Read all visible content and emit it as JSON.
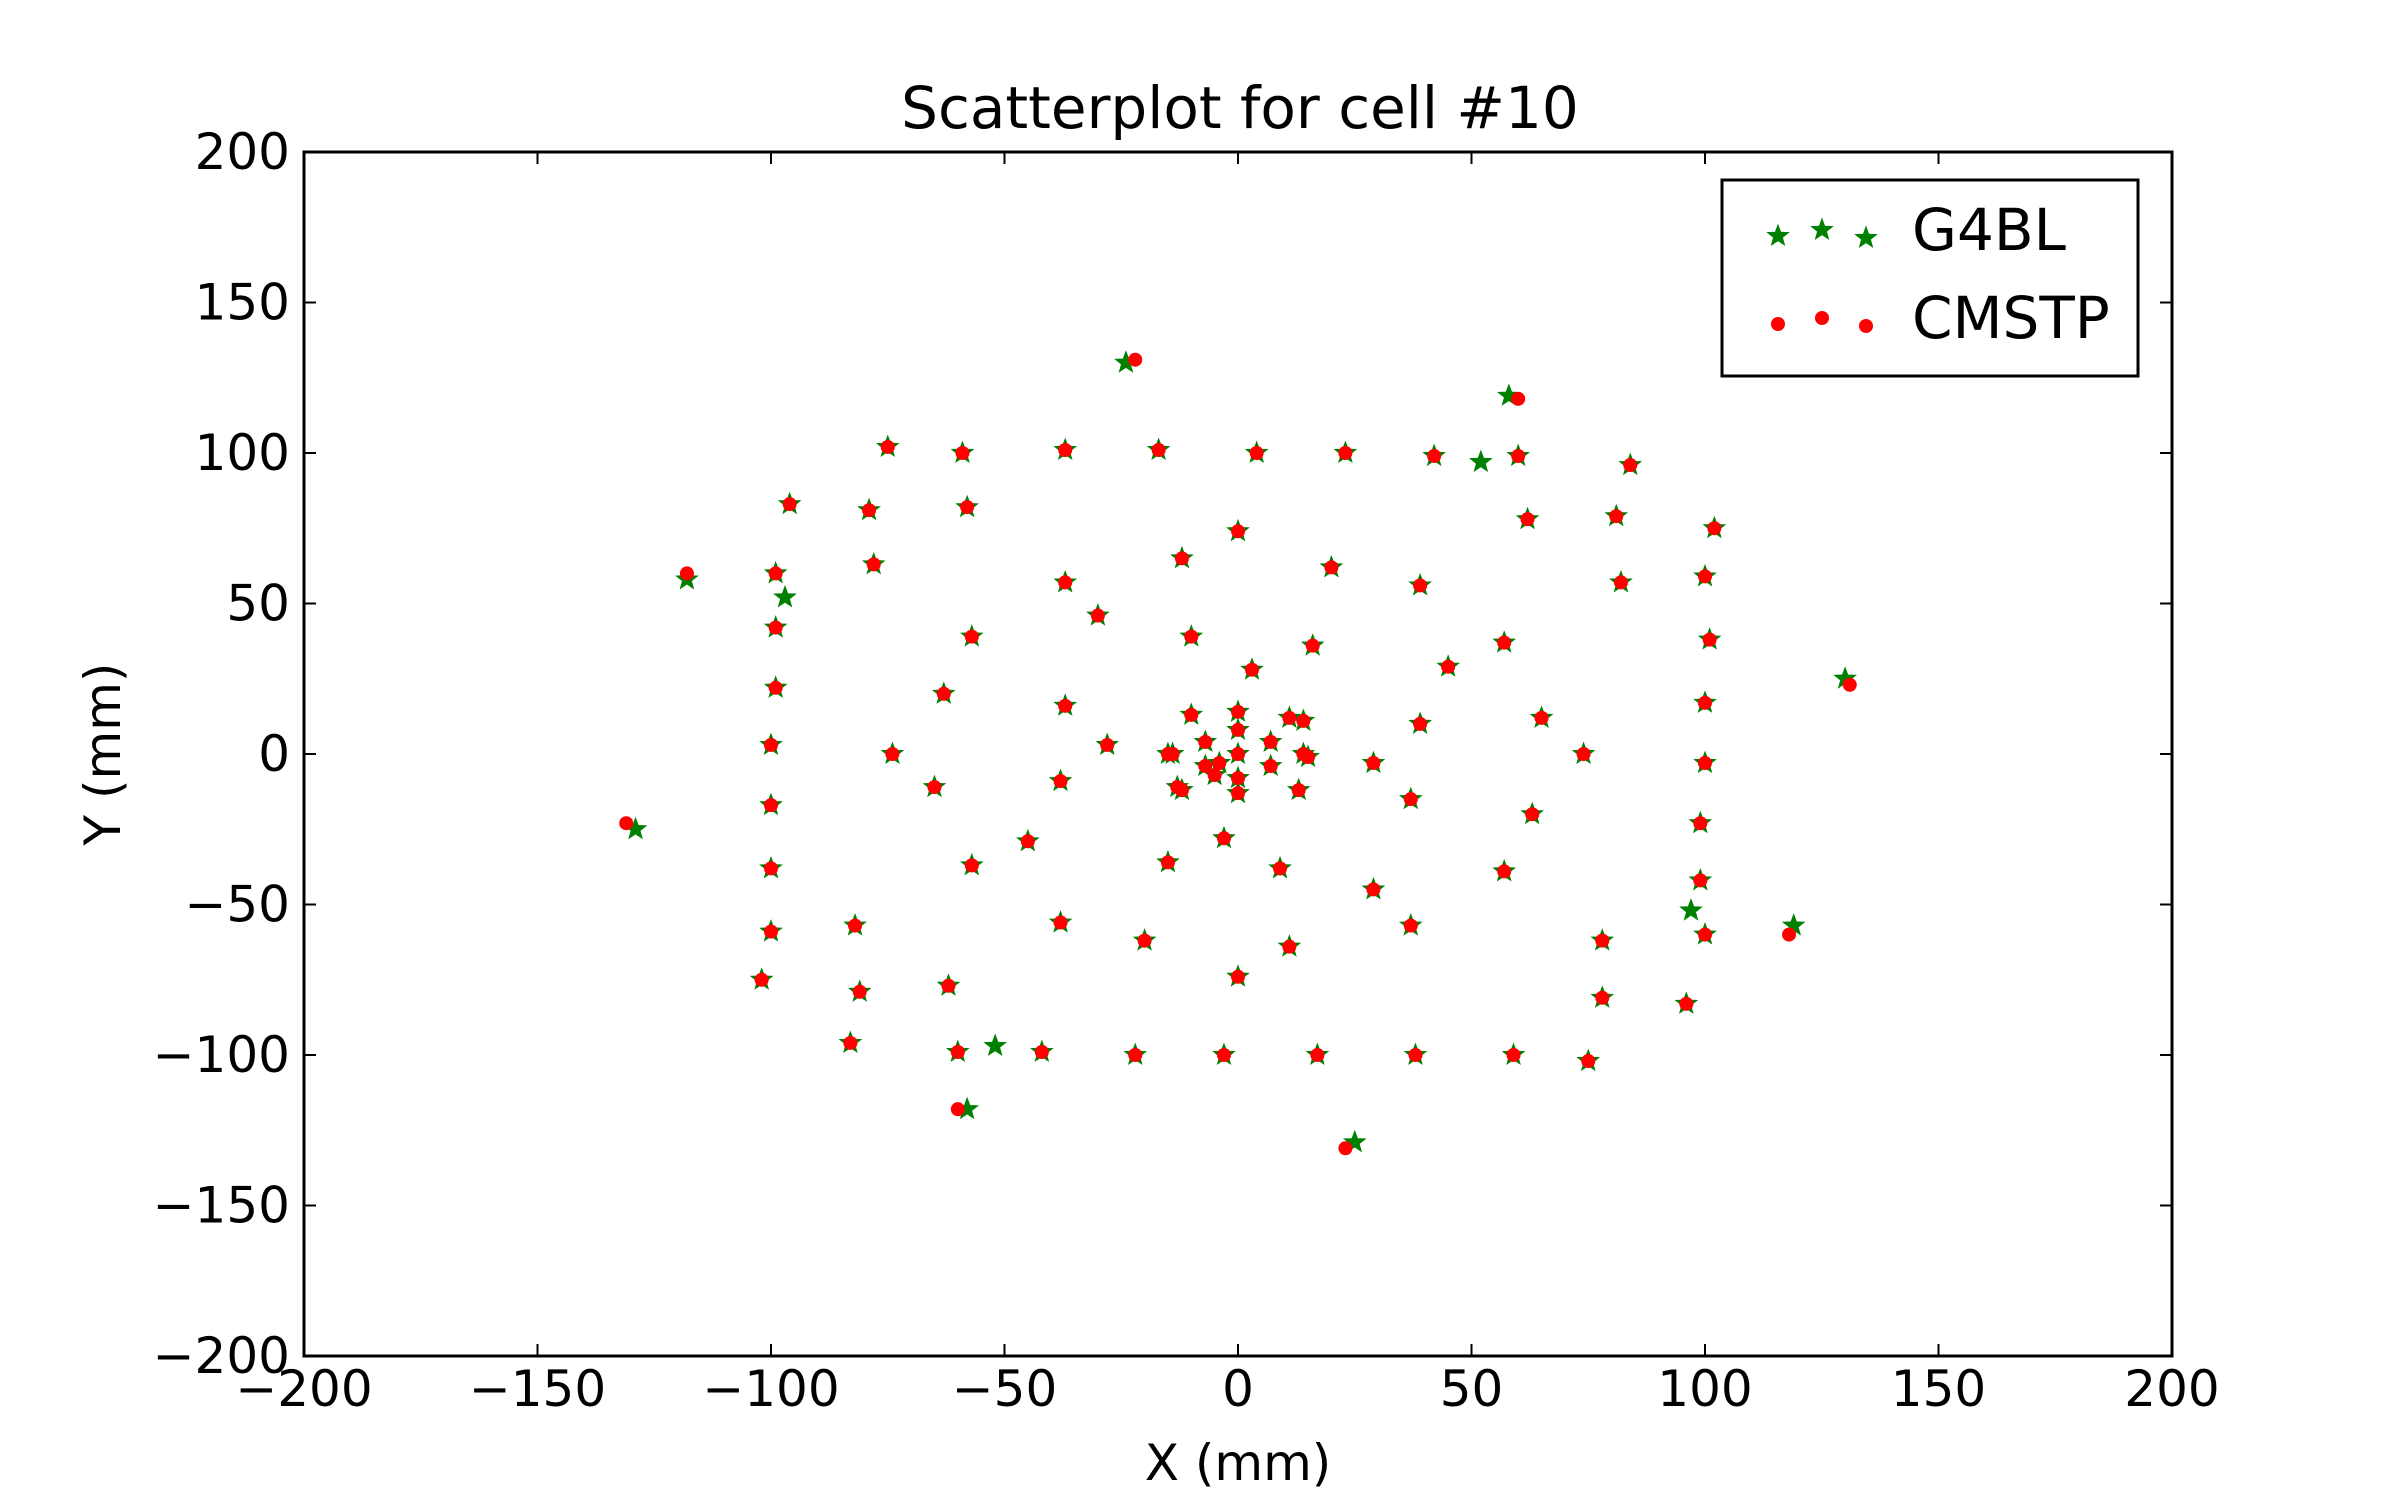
{
  "chart_data": {
    "type": "scatter",
    "title": "Scatterplot for cell #10",
    "xlabel": "X (mm)",
    "ylabel": "Y (mm)",
    "xlim": [
      -200,
      200
    ],
    "ylim": [
      -200,
      200
    ],
    "xticks": [
      -200,
      -150,
      -100,
      -50,
      0,
      50,
      100,
      150,
      200
    ],
    "yticks": [
      -200,
      -150,
      -100,
      -50,
      0,
      50,
      100,
      150,
      200
    ],
    "xtick_labels": [
      "−200",
      "−150",
      "−100",
      "−50",
      "0",
      "50",
      "100",
      "150",
      "200"
    ],
    "ytick_labels": [
      "−200",
      "−150",
      "−100",
      "−50",
      "0",
      "50",
      "100",
      "150",
      "200"
    ],
    "grid": false,
    "legend_position": "upper right",
    "series": [
      {
        "name": "G4BL",
        "marker": "star",
        "color": "#008000",
        "points": [
          [
            0,
            0
          ],
          [
            7,
            4
          ],
          [
            -7,
            4
          ],
          [
            7,
            -4
          ],
          [
            -7,
            -4
          ],
          [
            0,
            8
          ],
          [
            0,
            -8
          ],
          [
            0,
            14
          ],
          [
            0,
            -13
          ],
          [
            -10,
            13
          ],
          [
            11,
            12
          ],
          [
            -12,
            -12
          ],
          [
            13,
            -12
          ],
          [
            -14,
            0
          ],
          [
            14,
            0
          ],
          [
            -13,
            -11
          ],
          [
            14,
            11
          ],
          [
            -15,
            0
          ],
          [
            15,
            -1
          ],
          [
            -5,
            -7
          ],
          [
            -4,
            -3
          ],
          [
            -30,
            46
          ],
          [
            -10,
            39
          ],
          [
            -12,
            65
          ],
          [
            0,
            74
          ],
          [
            3,
            28
          ],
          [
            16,
            36
          ],
          [
            20,
            62
          ],
          [
            39,
            56
          ],
          [
            45,
            29
          ],
          [
            39,
            10
          ],
          [
            29,
            -3
          ],
          [
            37,
            -15
          ],
          [
            57,
            37
          ],
          [
            65,
            12
          ],
          [
            74,
            0
          ],
          [
            63,
            -20
          ],
          [
            57,
            -39
          ],
          [
            37,
            -57
          ],
          [
            29,
            -45
          ],
          [
            11,
            -64
          ],
          [
            9,
            -38
          ],
          [
            0,
            -74
          ],
          [
            -3,
            -28
          ],
          [
            -15,
            -36
          ],
          [
            -20,
            -62
          ],
          [
            -38,
            -56
          ],
          [
            -45,
            -29
          ],
          [
            -38,
            -9
          ],
          [
            -65,
            -11
          ],
          [
            -57,
            -37
          ],
          [
            -74,
            0
          ],
          [
            -57,
            39
          ],
          [
            -63,
            20
          ],
          [
            -37,
            16
          ],
          [
            -28,
            3
          ],
          [
            -37,
            57
          ],
          [
            -62,
            -77
          ],
          [
            -24,
            130
          ],
          [
            -75,
            102
          ],
          [
            -59,
            100
          ],
          [
            -37,
            101
          ],
          [
            -17,
            101
          ],
          [
            4,
            100
          ],
          [
            23,
            100
          ],
          [
            42,
            99
          ],
          [
            52,
            97
          ],
          [
            60,
            99
          ],
          [
            58,
            119
          ],
          [
            84,
            96
          ],
          [
            62,
            78
          ],
          [
            81,
            79
          ],
          [
            82,
            57
          ],
          [
            102,
            75
          ],
          [
            100,
            59
          ],
          [
            101,
            38
          ],
          [
            100,
            17
          ],
          [
            100,
            -3
          ],
          [
            99,
            -23
          ],
          [
            99,
            -42
          ],
          [
            97,
            -52
          ],
          [
            100,
            -60
          ],
          [
            119,
            -57
          ],
          [
            130,
            25
          ],
          [
            96,
            -83
          ],
          [
            78,
            -81
          ],
          [
            78,
            -62
          ],
          [
            75,
            -102
          ],
          [
            59,
            -100
          ],
          [
            38,
            -100
          ],
          [
            17,
            -100
          ],
          [
            -3,
            -100
          ],
          [
            -22,
            -100
          ],
          [
            -42,
            -99
          ],
          [
            -52,
            -97
          ],
          [
            -60,
            -99
          ],
          [
            -58,
            -118
          ],
          [
            25,
            -129
          ],
          [
            -83,
            -96
          ],
          [
            -81,
            -79
          ],
          [
            -82,
            -57
          ],
          [
            -102,
            -75
          ],
          [
            -100,
            -59
          ],
          [
            -100,
            -38
          ],
          [
            -100,
            -17
          ],
          [
            -100,
            3
          ],
          [
            -99,
            22
          ],
          [
            -99,
            42
          ],
          [
            -97,
            52
          ],
          [
            -99,
            60
          ],
          [
            -96,
            83
          ],
          [
            -78,
            63
          ],
          [
            -79,
            81
          ],
          [
            -58,
            82
          ],
          [
            -118,
            58
          ],
          [
            -129,
            -25
          ]
        ]
      },
      {
        "name": "CMSTP",
        "marker": "circle",
        "color": "#ff0000",
        "points": [
          [
            0,
            0
          ],
          [
            7,
            4
          ],
          [
            -7,
            4
          ],
          [
            7,
            -4
          ],
          [
            -7,
            -4
          ],
          [
            0,
            8
          ],
          [
            0,
            -8
          ],
          [
            0,
            14
          ],
          [
            0,
            -13
          ],
          [
            -10,
            13
          ],
          [
            11,
            12
          ],
          [
            -12,
            -12
          ],
          [
            13,
            -12
          ],
          [
            -14,
            0
          ],
          [
            14,
            0
          ],
          [
            -13,
            -11
          ],
          [
            14,
            11
          ],
          [
            -15,
            0
          ],
          [
            15,
            -1
          ],
          [
            -5,
            -7
          ],
          [
            -4,
            -3
          ],
          [
            -30,
            46
          ],
          [
            -10,
            39
          ],
          [
            -12,
            65
          ],
          [
            0,
            74
          ],
          [
            3,
            28
          ],
          [
            16,
            36
          ],
          [
            20,
            62
          ],
          [
            39,
            56
          ],
          [
            45,
            29
          ],
          [
            39,
            10
          ],
          [
            29,
            -3
          ],
          [
            37,
            -15
          ],
          [
            57,
            37
          ],
          [
            65,
            12
          ],
          [
            74,
            0
          ],
          [
            63,
            -20
          ],
          [
            57,
            -39
          ],
          [
            37,
            -57
          ],
          [
            29,
            -45
          ],
          [
            11,
            -64
          ],
          [
            9,
            -38
          ],
          [
            0,
            -74
          ],
          [
            -3,
            -28
          ],
          [
            -15,
            -36
          ],
          [
            -20,
            -62
          ],
          [
            -38,
            -56
          ],
          [
            -45,
            -29
          ],
          [
            -38,
            -9
          ],
          [
            -65,
            -11
          ],
          [
            -57,
            -37
          ],
          [
            -74,
            0
          ],
          [
            -57,
            39
          ],
          [
            -63,
            20
          ],
          [
            -37,
            16
          ],
          [
            -28,
            3
          ],
          [
            -37,
            57
          ],
          [
            -62,
            -77
          ],
          [
            -22,
            131
          ],
          [
            -75,
            102
          ],
          [
            -59,
            100
          ],
          [
            -37,
            101
          ],
          [
            -17,
            101
          ],
          [
            4,
            100
          ],
          [
            23,
            100
          ],
          [
            42,
            99
          ],
          [
            60,
            118
          ],
          [
            60,
            99
          ],
          [
            84,
            96
          ],
          [
            62,
            78
          ],
          [
            81,
            79
          ],
          [
            82,
            57
          ],
          [
            102,
            75
          ],
          [
            100,
            59
          ],
          [
            101,
            38
          ],
          [
            100,
            17
          ],
          [
            100,
            -3
          ],
          [
            99,
            -23
          ],
          [
            99,
            -42
          ],
          [
            100,
            -60
          ],
          [
            118,
            -60
          ],
          [
            131,
            23
          ],
          [
            96,
            -83
          ],
          [
            78,
            -81
          ],
          [
            78,
            -62
          ],
          [
            75,
            -102
          ],
          [
            59,
            -100
          ],
          [
            38,
            -100
          ],
          [
            17,
            -100
          ],
          [
            -3,
            -100
          ],
          [
            -22,
            -100
          ],
          [
            -42,
            -99
          ],
          [
            -60,
            -99
          ],
          [
            -60,
            -118
          ],
          [
            23,
            -131
          ],
          [
            -83,
            -96
          ],
          [
            -81,
            -79
          ],
          [
            -82,
            -57
          ],
          [
            -102,
            -75
          ],
          [
            -100,
            -59
          ],
          [
            -100,
            -38
          ],
          [
            -100,
            -17
          ],
          [
            -100,
            3
          ],
          [
            -99,
            22
          ],
          [
            -99,
            42
          ],
          [
            -99,
            60
          ],
          [
            -96,
            83
          ],
          [
            -78,
            63
          ],
          [
            -79,
            81
          ],
          [
            -58,
            82
          ],
          [
            -118,
            60
          ],
          [
            -131,
            -23
          ]
        ]
      }
    ]
  }
}
